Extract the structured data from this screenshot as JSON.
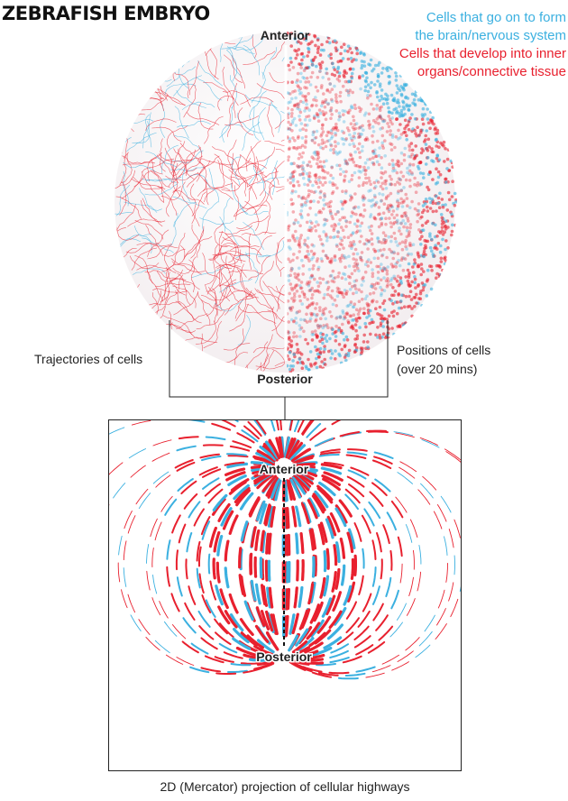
{
  "header": {
    "title": "ZEBRAFISH EMBRYO"
  },
  "legend": [
    {
      "lines": [
        "Cells that go on to form",
        "the brain/nervous system"
      ],
      "color": "#3bb0e0"
    },
    {
      "lines": [
        "Cells that develop into inner",
        "organs/connective tissue"
      ],
      "color": "#e8202e"
    }
  ],
  "sphere": {
    "top_label": "Anterior",
    "bottom_label": "Posterior",
    "left_label": "Trajectories of cells",
    "right_label": [
      "Positions of cells",
      "(over 20 mins)"
    ]
  },
  "projection": {
    "top_label": "Anterior",
    "bottom_label": "Posterior",
    "caption": "2D (Mercator) projection of cellular highways"
  }
}
